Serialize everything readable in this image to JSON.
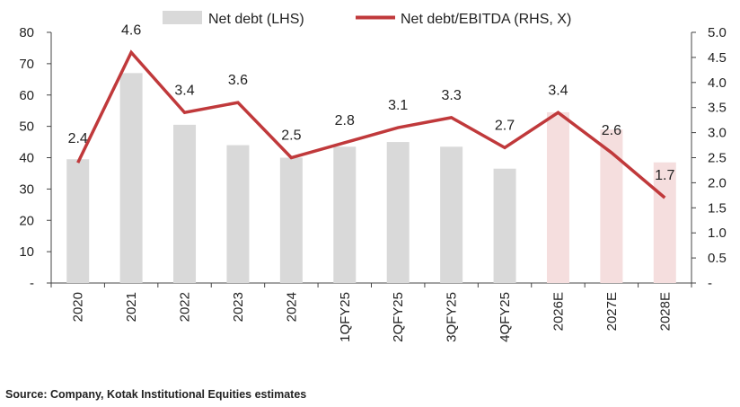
{
  "chart_data": {
    "type": "bar",
    "categories": [
      "2020",
      "2021",
      "2022",
      "2023",
      "2024",
      "1QFY25",
      "2QFY25",
      "3QFY25",
      "4QFY25",
      "2026E",
      "2027E",
      "2028E"
    ],
    "series": [
      {
        "name": "Net debt (LHS)",
        "type": "bar",
        "axis": "left",
        "values": [
          39.5,
          67,
          50.5,
          44,
          40,
          43.5,
          45,
          43.5,
          36.5,
          54.5,
          49,
          38.5
        ],
        "color": "#d9d9d9",
        "estimate_color": "#f5dede"
      },
      {
        "name": "Net debt/EBITDA (RHS, X)",
        "type": "line",
        "axis": "right",
        "values": [
          2.4,
          4.6,
          3.4,
          3.6,
          2.5,
          2.8,
          3.1,
          3.3,
          2.7,
          3.4,
          2.6,
          1.7
        ],
        "labels": [
          "2.4",
          "4.6",
          "3.4",
          "3.6",
          "2.5",
          "2.8",
          "3.1",
          "3.3",
          "2.7",
          "3.4",
          "2.6",
          "1.7"
        ],
        "color": "#c0393b"
      }
    ],
    "estimate_categories": [
      "2026E",
      "2027E",
      "2028E"
    ],
    "y_left": {
      "min": 0,
      "max": 80,
      "ticks": [
        "-",
        "10",
        "20",
        "30",
        "40",
        "50",
        "60",
        "70",
        "80"
      ]
    },
    "y_right": {
      "min": 0,
      "max": 5,
      "ticks": [
        "-",
        "0.5",
        "1.0",
        "1.5",
        "2.0",
        "2.5",
        "3.0",
        "3.5",
        "4.0",
        "4.5",
        "5.0"
      ]
    },
    "legend_position": "top",
    "grid": false
  },
  "source_text": "Source: Company, Kotak Institutional Equities estimates"
}
